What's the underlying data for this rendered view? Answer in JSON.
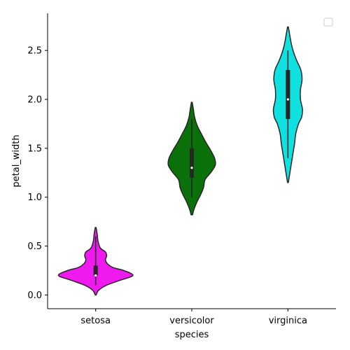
{
  "chart_data": {
    "type": "violin",
    "xlabel": "species",
    "ylabel": "petal_width",
    "ylim": [
      -0.14,
      2.88
    ],
    "yticks": [
      0.0,
      0.5,
      1.0,
      1.5,
      2.0,
      2.5
    ],
    "ytick_labels": [
      "0.0",
      "0.5",
      "1.0",
      "1.5",
      "2.0",
      "2.5"
    ],
    "categories": [
      "setosa",
      "versicolor",
      "virginica"
    ],
    "grid": false,
    "legend": "top-right, empty",
    "violins": [
      {
        "category": "setosa",
        "color": "#ee1aee",
        "min": 0.1,
        "q1": 0.2,
        "median": 0.2,
        "q3": 0.3,
        "max": 0.6,
        "kde_range": [
          0.0,
          0.69
        ],
        "profile": [
          [
            0.0,
            0.01
          ],
          [
            0.05,
            0.08
          ],
          [
            0.1,
            0.28
          ],
          [
            0.15,
            0.62
          ],
          [
            0.2,
            0.95
          ],
          [
            0.25,
            0.72
          ],
          [
            0.28,
            0.45
          ],
          [
            0.32,
            0.3
          ],
          [
            0.36,
            0.25
          ],
          [
            0.4,
            0.28
          ],
          [
            0.44,
            0.25
          ],
          [
            0.48,
            0.12
          ],
          [
            0.55,
            0.06
          ],
          [
            0.62,
            0.04
          ],
          [
            0.69,
            0.01
          ]
        ]
      },
      {
        "category": "versicolor",
        "color": "#0a710a",
        "min": 1.0,
        "q1": 1.2,
        "median": 1.3,
        "q3": 1.5,
        "max": 1.8,
        "kde_range": [
          0.82,
          1.97
        ],
        "profile": [
          [
            0.82,
            0.02
          ],
          [
            0.87,
            0.05
          ],
          [
            0.95,
            0.13
          ],
          [
            1.03,
            0.23
          ],
          [
            1.1,
            0.3
          ],
          [
            1.18,
            0.34
          ],
          [
            1.26,
            0.5
          ],
          [
            1.33,
            0.6
          ],
          [
            1.4,
            0.58
          ],
          [
            1.48,
            0.48
          ],
          [
            1.56,
            0.36
          ],
          [
            1.65,
            0.24
          ],
          [
            1.73,
            0.14
          ],
          [
            1.82,
            0.07
          ],
          [
            1.9,
            0.04
          ],
          [
            1.97,
            0.01
          ]
        ]
      },
      {
        "category": "virginica",
        "color": "#11e0e0",
        "min": 1.4,
        "q1": 1.8,
        "median": 2.0,
        "q3": 2.3,
        "max": 2.5,
        "kde_range": [
          1.15,
          2.74
        ],
        "profile": [
          [
            1.15,
            0.01
          ],
          [
            1.25,
            0.05
          ],
          [
            1.35,
            0.09
          ],
          [
            1.45,
            0.13
          ],
          [
            1.55,
            0.17
          ],
          [
            1.65,
            0.2
          ],
          [
            1.75,
            0.27
          ],
          [
            1.82,
            0.35
          ],
          [
            1.9,
            0.37
          ],
          [
            2.0,
            0.32
          ],
          [
            2.1,
            0.32
          ],
          [
            2.2,
            0.36
          ],
          [
            2.3,
            0.33
          ],
          [
            2.4,
            0.22
          ],
          [
            2.5,
            0.13
          ],
          [
            2.58,
            0.08
          ],
          [
            2.65,
            0.05
          ],
          [
            2.74,
            0.01
          ]
        ]
      }
    ]
  }
}
